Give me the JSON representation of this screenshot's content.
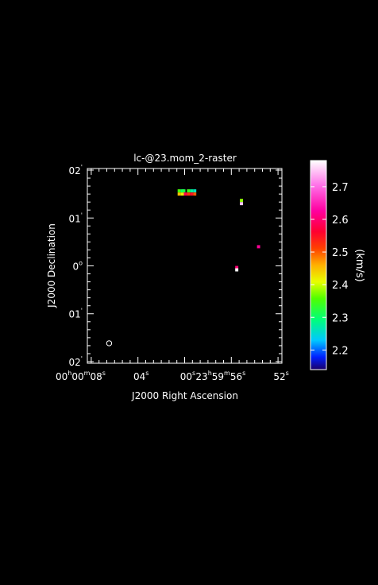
{
  "chart_data": {
    "type": "heatmap",
    "title": "lc-@23.mom_2-raster",
    "xlabel": "J2000 Right Ascension",
    "ylabel": "J2000 Declination",
    "colorbar": {
      "label": "(km/s)",
      "range": [
        2.14,
        2.78
      ],
      "ticks": [
        {
          "value": 2.2,
          "label": "2.2"
        },
        {
          "value": 2.3,
          "label": "2.3"
        },
        {
          "value": 2.4,
          "label": "2.4"
        },
        {
          "value": 2.5,
          "label": "2.5"
        },
        {
          "value": 2.6,
          "label": "2.6"
        },
        {
          "value": 2.7,
          "label": "2.7"
        }
      ]
    },
    "xlim_arcsec": [
      125,
      -125
    ],
    "ylim_arcsec": [
      -122,
      122
    ],
    "x_ticks": [
      {
        "value": 120,
        "sup_h": "h",
        "sup_m": "m",
        "sup_s": "s",
        "label_parts": [
          "00",
          "00",
          "08",
          ""
        ]
      },
      {
        "value": 60,
        "label": "04",
        "sup": "s"
      },
      {
        "value": 0,
        "label": "00",
        "sup": "s"
      },
      {
        "value": -60,
        "label_parts": [
          "23",
          "59",
          "56",
          ""
        ]
      },
      {
        "value": -120,
        "label": "52",
        "sup": "s"
      }
    ],
    "y_ticks": [
      {
        "value": 120,
        "label": "02",
        "sup": "'"
      },
      {
        "value": 60,
        "label": "01",
        "sup": "'"
      },
      {
        "value": 0,
        "label": "0",
        "sup": "o"
      },
      {
        "value": -60,
        "label": "01",
        "sup": "'"
      },
      {
        "value": -120,
        "label": "02",
        "sup": "'"
      }
    ],
    "pixels": [
      {
        "x": 7,
        "y": 94,
        "v": 2.35
      },
      {
        "x": 3,
        "y": 94,
        "v": 2.3
      },
      {
        "x": 1,
        "y": 94,
        "v": 2.32
      },
      {
        "x": -5,
        "y": 94,
        "v": 2.34
      },
      {
        "x": -9,
        "y": 94,
        "v": 2.28
      },
      {
        "x": -13,
        "y": 94,
        "v": 2.26
      },
      {
        "x": 7,
        "y": 90,
        "v": 2.45
      },
      {
        "x": 3,
        "y": 90,
        "v": 2.42
      },
      {
        "x": -1,
        "y": 90,
        "v": 2.58
      },
      {
        "x": -5,
        "y": 90,
        "v": 2.52
      },
      {
        "x": -9,
        "y": 90,
        "v": 2.55
      },
      {
        "x": -13,
        "y": 90,
        "v": 2.5
      },
      {
        "x": -73,
        "y": 82,
        "v": 2.38
      },
      {
        "x": -73,
        "y": 78,
        "v": 2.75
      },
      {
        "x": -95,
        "y": 24,
        "v": 2.62
      },
      {
        "x": -67,
        "y": -2,
        "v": 2.6
      },
      {
        "x": -67,
        "y": -5,
        "v": 2.78
      }
    ],
    "beam": {
      "x": 97,
      "y": -97
    }
  }
}
